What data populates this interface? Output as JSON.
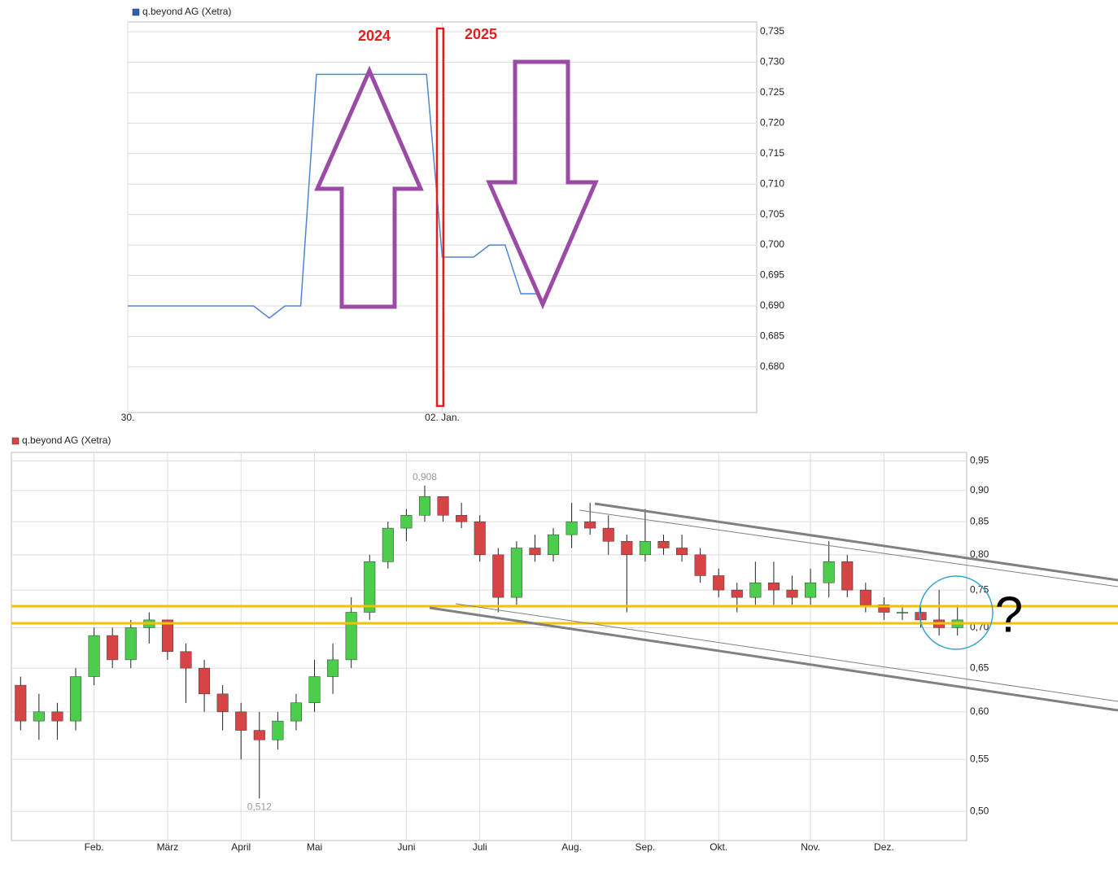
{
  "chart_data": [
    {
      "type": "line",
      "annotations": [
        "2024",
        "2025"
      ],
      "categories": [
        "30.",
        null,
        null,
        null,
        null,
        null,
        null,
        null,
        null,
        null,
        null,
        null,
        null,
        null,
        null,
        null,
        null,
        null,
        null,
        null,
        "02. Jan.",
        null,
        null,
        null,
        null,
        null,
        null,
        null,
        null,
        null,
        null,
        null,
        null,
        null,
        null,
        null,
        null,
        null,
        null,
        null
      ],
      "series": [
        {
          "name": "q.beyond AG (Xetra)",
          "color": "#4f86d0",
          "legend_color": "#2f5fae",
          "values": [
            0.69,
            0.69,
            0.69,
            0.69,
            0.69,
            0.69,
            0.69,
            0.69,
            0.69,
            0.688,
            0.69,
            0.69,
            0.728,
            0.728,
            0.728,
            0.728,
            0.728,
            0.728,
            0.728,
            0.728,
            0.698,
            0.698,
            0.698,
            0.7,
            0.7,
            0.692,
            0.692,
            null,
            null,
            null,
            null,
            null,
            null,
            null,
            null,
            null,
            null,
            null,
            null,
            null
          ]
        }
      ],
      "ylim": [
        0.6725,
        0.7366
      ],
      "yticks": [
        {
          "value": 0.68,
          "label": "0,680"
        },
        {
          "value": 0.685,
          "label": "0,685"
        },
        {
          "value": 0.69,
          "label": "0,690"
        },
        {
          "value": 0.695,
          "label": "0,695"
        },
        {
          "value": 0.7,
          "label": "0,700"
        },
        {
          "value": 0.705,
          "label": "0,705"
        },
        {
          "value": 0.71,
          "label": "0,710"
        },
        {
          "value": 0.715,
          "label": "0,715"
        },
        {
          "value": 0.72,
          "label": "0,720"
        },
        {
          "value": 0.725,
          "label": "0,725"
        },
        {
          "value": 0.73,
          "label": "0,730"
        },
        {
          "value": 0.735,
          "label": "0,735"
        }
      ],
      "grid": true
    },
    {
      "type": "candlestick",
      "annotations": [
        "?",
        "0,908",
        "0,512"
      ],
      "categories": [
        null,
        null,
        null,
        null,
        "Feb.",
        null,
        null,
        null,
        "März",
        null,
        null,
        null,
        "April",
        null,
        null,
        null,
        "Mai",
        null,
        null,
        null,
        null,
        "Juni",
        null,
        null,
        null,
        "Juli",
        null,
        null,
        null,
        null,
        "Aug.",
        null,
        null,
        null,
        "Sep.",
        null,
        null,
        null,
        "Okt.",
        null,
        null,
        null,
        null,
        "Nov.",
        null,
        null,
        null,
        "Dez.",
        null,
        null,
        null,
        null
      ],
      "series": [
        {
          "name": "q.beyond AG (Xetra)",
          "color": "#d64545",
          "up_color": "#4ccd4c",
          "open": [
            0.63,
            0.59,
            0.6,
            0.59,
            0.64,
            0.69,
            0.66,
            0.7,
            0.71,
            0.67,
            0.65,
            0.62,
            0.6,
            0.58,
            0.57,
            0.59,
            0.61,
            0.64,
            0.66,
            0.72,
            0.79,
            0.84,
            0.86,
            0.89,
            0.86,
            0.85,
            0.8,
            0.74,
            0.81,
            0.8,
            0.83,
            0.85,
            0.84,
            0.82,
            0.8,
            0.82,
            0.81,
            0.8,
            0.77,
            0.75,
            0.74,
            0.76,
            0.75,
            0.74,
            0.76,
            0.79,
            0.75,
            0.73,
            0.72,
            0.72,
            0.71,
            0.7
          ],
          "high": [
            0.64,
            0.62,
            0.61,
            0.65,
            0.7,
            0.7,
            0.71,
            0.72,
            0.71,
            0.68,
            0.66,
            0.63,
            0.61,
            0.6,
            0.6,
            0.62,
            0.66,
            0.68,
            0.74,
            0.8,
            0.85,
            0.87,
            0.908,
            0.89,
            0.88,
            0.86,
            0.81,
            0.82,
            0.83,
            0.84,
            0.88,
            0.88,
            0.86,
            0.83,
            0.87,
            0.83,
            0.83,
            0.81,
            0.78,
            0.76,
            0.79,
            0.79,
            0.77,
            0.78,
            0.82,
            0.8,
            0.76,
            0.74,
            0.73,
            0.73,
            0.75,
            0.73
          ],
          "low": [
            0.58,
            0.57,
            0.57,
            0.58,
            0.63,
            0.65,
            0.65,
            0.68,
            0.66,
            0.61,
            0.6,
            0.58,
            0.55,
            0.512,
            0.56,
            0.58,
            0.6,
            0.62,
            0.65,
            0.71,
            0.78,
            0.82,
            0.85,
            0.85,
            0.84,
            0.79,
            0.72,
            0.73,
            0.79,
            0.79,
            0.81,
            0.83,
            0.8,
            0.72,
            0.79,
            0.8,
            0.79,
            0.76,
            0.74,
            0.72,
            0.73,
            0.73,
            0.73,
            0.73,
            0.74,
            0.74,
            0.72,
            0.71,
            0.71,
            0.7,
            0.69,
            0.69
          ],
          "close": [
            0.59,
            0.6,
            0.59,
            0.64,
            0.69,
            0.66,
            0.7,
            0.71,
            0.67,
            0.65,
            0.62,
            0.6,
            0.58,
            0.57,
            0.59,
            0.61,
            0.64,
            0.66,
            0.72,
            0.79,
            0.84,
            0.86,
            0.89,
            0.86,
            0.85,
            0.8,
            0.74,
            0.81,
            0.8,
            0.83,
            0.85,
            0.84,
            0.82,
            0.8,
            0.82,
            0.81,
            0.8,
            0.77,
            0.75,
            0.74,
            0.76,
            0.75,
            0.74,
            0.76,
            0.79,
            0.75,
            0.73,
            0.72,
            0.72,
            0.71,
            0.7,
            0.71
          ]
        }
      ],
      "ylim": [
        0.474,
        0.965
      ],
      "ylog": true,
      "yticks": [
        {
          "value": 0.5,
          "label": "0,50"
        },
        {
          "value": 0.55,
          "label": "0,55"
        },
        {
          "value": 0.6,
          "label": "0,60"
        },
        {
          "value": 0.65,
          "label": "0,65"
        },
        {
          "value": 0.7,
          "label": "0,70"
        },
        {
          "value": 0.75,
          "label": "0,75"
        },
        {
          "value": 0.8,
          "label": "0,80"
        },
        {
          "value": 0.85,
          "label": "0,85"
        },
        {
          "value": 0.9,
          "label": "0,90"
        },
        {
          "value": 0.95,
          "label": "0,95"
        }
      ],
      "grid": true
    }
  ]
}
